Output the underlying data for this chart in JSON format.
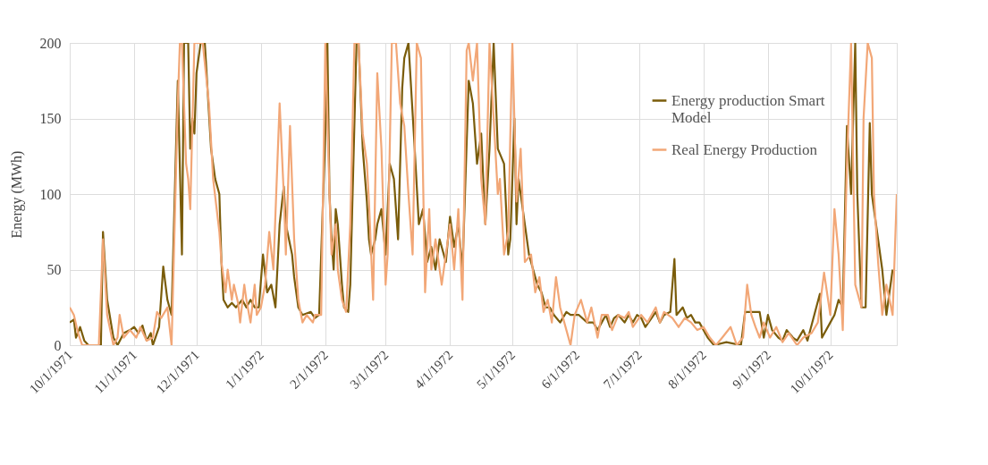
{
  "chart_data": {
    "type": "line",
    "ylabel": "Energy (MWh)",
    "xlim": [
      "1971-10-01",
      "1972-11-02"
    ],
    "ylim": [
      0,
      200
    ],
    "yticks": [
      0,
      50,
      100,
      150,
      200
    ],
    "xticks": [
      {
        "value": "1971-10-01",
        "label": "10/1/1971"
      },
      {
        "value": "1971-11-01",
        "label": "11/1/1971"
      },
      {
        "value": "1971-12-01",
        "label": "12/1/1971"
      },
      {
        "value": "1972-01-01",
        "label": "1/1/1972"
      },
      {
        "value": "1972-02-01",
        "label": "2/1/1972"
      },
      {
        "value": "1972-03-01",
        "label": "3/1/1972"
      },
      {
        "value": "1972-04-01",
        "label": "4/1/1972"
      },
      {
        "value": "1972-05-01",
        "label": "5/1/1972"
      },
      {
        "value": "1972-06-01",
        "label": "6/1/1972"
      },
      {
        "value": "1972-07-01",
        "label": "7/1/1972"
      },
      {
        "value": "1972-08-01",
        "label": "8/1/1972"
      },
      {
        "value": "1972-09-01",
        "label": "9/1/1972"
      },
      {
        "value": "1972-10-01",
        "label": "10/1/1972"
      }
    ],
    "grid": true,
    "legend": "top right",
    "series": [
      {
        "name": "Energy production Smart Model",
        "color": "#7a5c0a",
        "x": [
          "1971-10-01",
          "1971-10-03",
          "1971-10-04",
          "1971-10-06",
          "1971-10-08",
          "1971-10-10",
          "1971-10-16",
          "1971-10-17",
          "1971-10-19",
          "1971-10-22",
          "1971-10-24",
          "1971-10-27",
          "1971-10-30",
          "1971-11-01",
          "1971-11-03",
          "1971-11-05",
          "1971-11-07",
          "1971-11-09",
          "1971-11-10",
          "1971-11-13",
          "1971-11-15",
          "1971-11-17",
          "1971-11-19",
          "1971-11-22",
          "1971-11-24",
          "1971-11-25",
          "1971-11-27",
          "1971-11-28",
          "1971-11-29",
          "1971-11-30",
          "1971-12-01",
          "1971-12-03",
          "1971-12-05",
          "1971-12-08",
          "1971-12-10",
          "1971-12-12",
          "1971-12-13",
          "1971-12-14",
          "1971-12-16",
          "1971-12-18",
          "1971-12-20",
          "1971-12-23",
          "1971-12-25",
          "1971-12-27",
          "1971-12-29",
          "1971-12-31",
          "1972-01-02",
          "1972-01-04",
          "1972-01-06",
          "1972-01-08",
          "1972-01-10",
          "1972-01-12",
          "1972-01-13",
          "1972-01-16",
          "1972-01-17",
          "1972-01-19",
          "1972-01-21",
          "1972-01-25",
          "1972-01-27",
          "1972-01-29",
          "1972-02-01",
          "1972-02-02",
          "1972-02-03",
          "1972-02-04",
          "1972-02-05",
          "1972-02-06",
          "1972-02-07",
          "1972-02-09",
          "1972-02-10",
          "1972-02-12",
          "1972-02-13",
          "1972-02-16",
          "1972-02-17",
          "1972-02-19",
          "1972-02-21",
          "1972-02-22",
          "1972-02-23",
          "1972-02-25",
          "1972-02-26",
          "1972-02-28",
          "1972-03-01",
          "1972-03-03",
          "1972-03-05",
          "1972-03-07",
          "1972-03-09",
          "1972-03-10",
          "1972-03-12",
          "1972-03-15",
          "1972-03-17",
          "1972-03-19",
          "1972-03-21",
          "1972-03-23",
          "1972-03-25",
          "1972-03-27",
          "1972-03-30",
          "1972-04-01",
          "1972-04-03",
          "1972-04-05",
          "1972-04-07",
          "1972-04-10",
          "1972-04-12",
          "1972-04-14",
          "1972-04-16",
          "1972-04-18",
          "1972-04-20",
          "1972-04-22",
          "1972-04-24",
          "1972-04-27",
          "1972-04-29",
          "1972-04-30",
          "1972-05-02",
          "1972-05-03",
          "1972-05-04",
          "1972-05-06",
          "1972-05-09",
          "1972-05-11",
          "1972-05-13",
          "1972-05-15",
          "1972-05-17",
          "1972-05-19",
          "1972-05-21",
          "1972-05-24",
          "1972-05-27",
          "1972-05-29",
          "1972-06-02",
          "1972-06-06",
          "1972-06-09",
          "1972-06-11",
          "1972-06-13",
          "1972-06-15",
          "1972-06-17",
          "1972-06-19",
          "1972-06-21",
          "1972-06-24",
          "1972-06-26",
          "1972-06-28",
          "1972-06-30",
          "1972-07-02",
          "1972-07-04",
          "1972-07-07",
          "1972-07-09",
          "1972-07-11",
          "1972-07-13",
          "1972-07-16",
          "1972-07-18",
          "1972-07-19",
          "1972-07-22",
          "1972-07-24",
          "1972-07-26",
          "1972-07-28",
          "1972-07-30",
          "1972-08-01",
          "1972-08-03",
          "1972-08-06",
          "1972-08-12",
          "1972-08-19",
          "1972-08-21",
          "1972-08-28",
          "1972-08-30",
          "1972-09-01",
          "1972-09-03",
          "1972-09-06",
          "1972-09-08",
          "1972-09-10",
          "1972-09-13",
          "1972-09-15",
          "1972-09-18",
          "1972-09-20",
          "1972-09-26",
          "1972-09-27",
          "1972-10-01",
          "1972-10-03",
          "1972-10-05",
          "1972-10-07",
          "1972-10-09",
          "1972-10-11",
          "1972-10-13",
          "1972-10-14",
          "1972-10-16",
          "1972-10-18",
          "1972-10-20",
          "1972-10-21",
          "1972-10-23",
          "1972-10-26",
          "1972-10-28",
          "1972-10-31"
        ],
        "values": [
          15,
          17,
          5,
          12,
          3,
          0,
          0,
          75,
          30,
          5,
          0,
          8,
          10,
          12,
          8,
          13,
          3,
          8,
          0,
          12,
          52,
          30,
          20,
          175,
          60,
          200,
          200,
          130,
          150,
          140,
          180,
          200,
          200,
          130,
          110,
          100,
          55,
          30,
          25,
          28,
          25,
          30,
          25,
          30,
          25,
          25,
          60,
          35,
          40,
          25,
          80,
          105,
          80,
          60,
          45,
          25,
          20,
          22,
          18,
          20,
          140,
          200,
          100,
          70,
          50,
          90,
          80,
          40,
          25,
          22,
          40,
          200,
          200,
          130,
          95,
          70,
          60,
          70,
          80,
          90,
          60,
          120,
          110,
          70,
          170,
          190,
          200,
          130,
          80,
          90,
          55,
          65,
          50,
          70,
          55,
          85,
          65,
          80,
          50,
          175,
          160,
          120,
          140,
          80,
          130,
          200,
          130,
          120,
          60,
          70,
          150,
          80,
          110,
          90,
          60,
          50,
          40,
          35,
          25,
          25,
          20,
          15,
          22,
          20,
          20,
          15,
          15,
          10,
          15,
          20,
          12,
          18,
          20,
          15,
          20,
          15,
          20,
          18,
          12,
          18,
          22,
          15,
          20,
          22,
          57,
          20,
          25,
          18,
          20,
          15,
          15,
          10,
          5,
          0,
          2,
          0,
          22,
          22,
          5,
          20,
          10,
          5,
          3,
          10,
          5,
          3,
          10,
          3,
          34,
          5,
          15,
          20,
          30,
          25,
          145,
          100,
          200,
          100,
          25,
          25,
          147,
          100,
          80,
          50,
          20,
          50
        ]
      },
      {
        "name": "Real Energy Production",
        "color": "#f2a777",
        "x": [
          "1971-10-01",
          "1971-10-03",
          "1971-10-05",
          "1971-10-07",
          "1971-10-15",
          "1971-10-17",
          "1971-10-19",
          "1971-10-22",
          "1971-10-24",
          "1971-10-25",
          "1971-10-27",
          "1971-10-30",
          "1971-11-02",
          "1971-11-04",
          "1971-11-07",
          "1971-11-10",
          "1971-11-12",
          "1971-11-14",
          "1971-11-17",
          "1971-11-19",
          "1971-11-22",
          "1971-11-23",
          "1971-11-24",
          "1971-11-26",
          "1971-11-27",
          "1971-11-28",
          "1971-11-30",
          "1971-12-01",
          "1971-12-04",
          "1971-12-07",
          "1971-12-09",
          "1971-12-12",
          "1971-12-13",
          "1971-12-15",
          "1971-12-16",
          "1971-12-18",
          "1971-12-19",
          "1971-12-21",
          "1971-12-22",
          "1971-12-24",
          "1971-12-25",
          "1971-12-27",
          "1971-12-29",
          "1971-12-30",
          "1972-01-01",
          "1972-01-03",
          "1972-01-05",
          "1972-01-07",
          "1972-01-10",
          "1972-01-12",
          "1972-01-13",
          "1972-01-15",
          "1972-01-17",
          "1972-01-19",
          "1972-01-21",
          "1972-01-23",
          "1972-01-26",
          "1972-01-27",
          "1972-01-30",
          "1972-02-01",
          "1972-02-03",
          "1972-02-04",
          "1972-02-06",
          "1972-02-07",
          "1972-02-09",
          "1972-02-11",
          "1972-02-13",
          "1972-02-15",
          "1972-02-17",
          "1972-02-19",
          "1972-02-21",
          "1972-02-22",
          "1972-02-24",
          "1972-02-26",
          "1972-02-28",
          "1972-03-01",
          "1972-03-02",
          "1972-03-04",
          "1972-03-06",
          "1972-03-08",
          "1972-03-10",
          "1972-03-12",
          "1972-03-14",
          "1972-03-16",
          "1972-03-18",
          "1972-03-20",
          "1972-03-22",
          "1972-03-23",
          "1972-03-25",
          "1972-03-28",
          "1972-03-30",
          "1972-04-01",
          "1972-04-03",
          "1972-04-05",
          "1972-04-07",
          "1972-04-09",
          "1972-04-10",
          "1972-04-12",
          "1972-04-14",
          "1972-04-16",
          "1972-04-18",
          "1972-04-20",
          "1972-04-22",
          "1972-04-24",
          "1972-04-25",
          "1972-04-27",
          "1972-04-29",
          "1972-05-01",
          "1972-05-03",
          "1972-05-05",
          "1972-05-07",
          "1972-05-10",
          "1972-05-12",
          "1972-05-14",
          "1972-05-16",
          "1972-05-18",
          "1972-05-20",
          "1972-05-22",
          "1972-05-24",
          "1972-05-27",
          "1972-05-29",
          "1972-05-31",
          "1972-06-03",
          "1972-06-06",
          "1972-06-08",
          "1972-06-11",
          "1972-06-13",
          "1972-06-16",
          "1972-06-18",
          "1972-06-21",
          "1972-06-24",
          "1972-06-26",
          "1972-06-28",
          "1972-07-02",
          "1972-07-05",
          "1972-07-09",
          "1972-07-11",
          "1972-07-13",
          "1972-07-17",
          "1972-07-20",
          "1972-07-23",
          "1972-07-26",
          "1972-07-29",
          "1972-08-01",
          "1972-08-04",
          "1972-08-07",
          "1972-08-10",
          "1972-08-14",
          "1972-08-17",
          "1972-08-20",
          "1972-08-22",
          "1972-08-24",
          "1972-08-26",
          "1972-08-28",
          "1972-08-30",
          "1972-09-02",
          "1972-09-05",
          "1972-09-08",
          "1972-09-11",
          "1972-09-15",
          "1972-09-18",
          "1972-09-22",
          "1972-09-25",
          "1972-09-28",
          "1972-10-01",
          "1972-10-03",
          "1972-10-05",
          "1972-10-07",
          "1972-10-09",
          "1972-10-11",
          "1972-10-13",
          "1972-10-16",
          "1972-10-17",
          "1972-10-19",
          "1972-10-21",
          "1972-10-22",
          "1972-10-24",
          "1972-10-26",
          "1972-10-28",
          "1972-10-31",
          "1972-11-02"
        ],
        "values": [
          25,
          20,
          8,
          0,
          0,
          70,
          20,
          0,
          5,
          20,
          5,
          10,
          5,
          12,
          3,
          5,
          22,
          18,
          25,
          0,
          160,
          200,
          200,
          120,
          110,
          90,
          200,
          200,
          200,
          160,
          110,
          75,
          55,
          35,
          50,
          30,
          40,
          28,
          15,
          40,
          30,
          15,
          40,
          20,
          25,
          40,
          75,
          50,
          160,
          100,
          60,
          145,
          70,
          30,
          15,
          20,
          15,
          20,
          20,
          200,
          100,
          60,
          80,
          50,
          30,
          22,
          80,
          200,
          200,
          140,
          120,
          95,
          30,
          180,
          130,
          40,
          60,
          200,
          200,
          160,
          145,
          100,
          60,
          200,
          190,
          35,
          90,
          50,
          70,
          40,
          60,
          80,
          50,
          90,
          30,
          195,
          200,
          175,
          200,
          110,
          80,
          200,
          150,
          100,
          110,
          60,
          75,
          200,
          95,
          130,
          55,
          60,
          35,
          45,
          22,
          30,
          15,
          45,
          25,
          10,
          0,
          20,
          30,
          15,
          25,
          5,
          20,
          20,
          10,
          20,
          18,
          22,
          12,
          20,
          15,
          25,
          15,
          22,
          18,
          12,
          18,
          15,
          10,
          12,
          5,
          0,
          5,
          12,
          0,
          5,
          40,
          20,
          12,
          5,
          15,
          5,
          12,
          2,
          8,
          0,
          5,
          8,
          15,
          48,
          20,
          90,
          60,
          10,
          120,
          200,
          40,
          25,
          150,
          200,
          190,
          100,
          55,
          20,
          40,
          20,
          100
        ]
      }
    ]
  }
}
